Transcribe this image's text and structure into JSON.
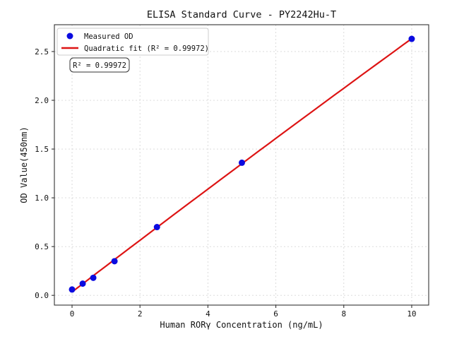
{
  "figure": {
    "background": "#ffffff"
  },
  "chart_data": {
    "type": "scatter",
    "title": "ELISA Standard Curve - PY2242Hu-T",
    "xlabel": "Human RORγ Concentration (ng/mL)",
    "ylabel": "OD Value(450nm)",
    "xlim": [
      -0.52,
      10.5
    ],
    "ylim": [
      -0.1,
      2.775
    ],
    "xticks": [
      0,
      2,
      4,
      6,
      8,
      10
    ],
    "yticks": [
      0.0,
      0.5,
      1.0,
      1.5,
      2.0,
      2.5
    ],
    "xtick_labels": [
      "0",
      "2",
      "4",
      "6",
      "8",
      "10"
    ],
    "ytick_labels": [
      "0.0",
      "0.5",
      "1.0",
      "1.5",
      "2.0",
      "2.5"
    ],
    "grid": true,
    "grid_style": "dashed",
    "legend_position": "upper-left",
    "series": [
      {
        "name": "Measured OD",
        "kind": "scatter",
        "color": "#0b0be0",
        "x": [
          0,
          0.313,
          0.625,
          1.25,
          2.5,
          5,
          10
        ],
        "y": [
          0.06,
          0.12,
          0.18,
          0.35,
          0.7,
          1.36,
          2.63
        ]
      },
      {
        "name": "Quadratic fit (R² = 0.99972)",
        "kind": "fit-line",
        "fit": "quadratic",
        "color": "#dd1414",
        "x_range": [
          0,
          10
        ]
      }
    ],
    "annotation": {
      "text": "R² = 0.99972"
    },
    "colors": {
      "grid": "#d7d7d7",
      "spine": "#333333",
      "text": "#111111",
      "legend_border": "#cccccc",
      "annotation_border": "#333333"
    }
  }
}
